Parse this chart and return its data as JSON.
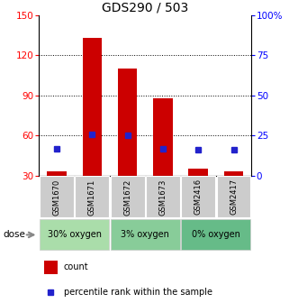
{
  "title": "GDS290 / 503",
  "categories": [
    "GSM1670",
    "GSM1671",
    "GSM1672",
    "GSM1673",
    "GSM2416",
    "GSM2417"
  ],
  "bar_values": [
    33,
    133,
    110,
    88,
    35,
    33
  ],
  "percentile_values": [
    17,
    26,
    25,
    17,
    16,
    16
  ],
  "bar_color": "#cc0000",
  "marker_color": "#2222cc",
  "ylim_left": [
    30,
    150
  ],
  "ylim_right": [
    0,
    100
  ],
  "yticks_left": [
    30,
    60,
    90,
    120,
    150
  ],
  "yticks_right": [
    0,
    25,
    50,
    75,
    100
  ],
  "ytick_labels_right": [
    "0",
    "25",
    "50",
    "75",
    "100%"
  ],
  "grid_lines": [
    60,
    90,
    120
  ],
  "groups": [
    {
      "label": "30% oxygen",
      "indices": [
        0,
        1
      ],
      "color": "#aaddaa"
    },
    {
      "label": "3% oxygen",
      "indices": [
        2,
        3
      ],
      "color": "#77cc88"
    },
    {
      "label": "0% oxygen",
      "indices": [
        4,
        5
      ],
      "color": "#55bb77"
    }
  ],
  "dose_label": "dose",
  "legend_count_label": "count",
  "legend_percentile_label": "percentile rank within the sample",
  "title_fontsize": 10,
  "tick_fontsize": 7.5,
  "cat_fontsize": 6,
  "group_fontsize": 7,
  "legend_fontsize": 7
}
